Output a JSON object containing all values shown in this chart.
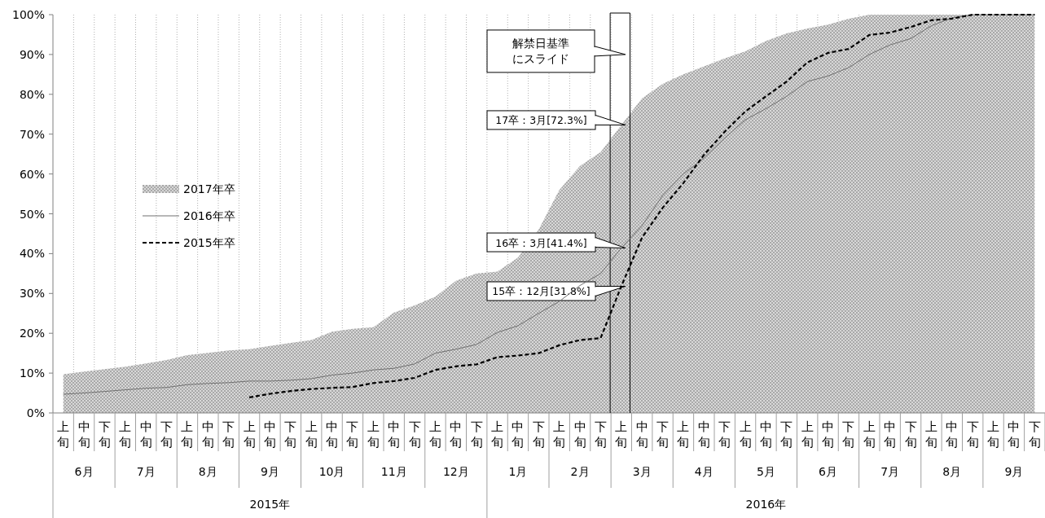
{
  "chart_data": {
    "type": "area",
    "categories": [
      "上旬",
      "中旬",
      "下旬",
      "上旬",
      "中旬",
      "下旬",
      "上旬",
      "中旬",
      "下旬",
      "上旬",
      "中旬",
      "下旬",
      "上旬",
      "中旬",
      "下旬",
      "上旬",
      "中旬",
      "下旬",
      "上旬",
      "中旬",
      "下旬",
      "上旬",
      "中旬",
      "下旬",
      "上旬",
      "中旬",
      "下旬",
      "上旬",
      "中旬",
      "下旬",
      "上旬",
      "中旬",
      "下旬",
      "上旬",
      "中旬",
      "下旬",
      "上旬",
      "中旬",
      "下旬",
      "上旬",
      "中旬",
      "下旬",
      "上旬",
      "中旬",
      "下旬",
      "上旬",
      "中旬",
      "下旬"
    ],
    "series": [
      {
        "name": "2017年卒",
        "type": "area",
        "color": "#a8a8a8",
        "values": [
          9.7,
          10.4,
          11.0,
          11.6,
          12.4,
          13.3,
          14.5,
          15.1,
          15.7,
          16.0,
          16.8,
          17.6,
          18.3,
          20.4,
          21.1,
          21.5,
          25.2,
          27.0,
          29.2,
          33.2,
          35.0,
          35.5,
          39,
          46,
          56,
          62,
          65.5,
          72.3,
          79,
          82.6,
          85,
          87,
          89,
          90.8,
          93.4,
          95.3,
          96.5,
          97.5,
          99,
          100,
          100,
          100,
          100,
          100,
          100,
          100,
          100,
          100
        ]
      },
      {
        "name": "2016年卒",
        "type": "line",
        "color": "#707070",
        "line_style": "solid",
        "values": [
          4.7,
          5.0,
          5.4,
          5.8,
          6.2,
          6.4,
          7.1,
          7.4,
          7.6,
          8.0,
          8.0,
          8.2,
          8.6,
          9.5,
          10,
          10.8,
          11.2,
          12.3,
          15,
          16,
          17.2,
          20.2,
          21.9,
          25,
          28,
          32,
          35,
          41.4,
          47,
          54.6,
          60,
          64,
          69,
          73.6,
          76.4,
          79.5,
          83.2,
          84.6,
          86.7,
          90,
          92.4,
          94,
          97.2,
          99.2,
          100,
          100,
          100,
          100
        ]
      },
      {
        "name": "2015年卒",
        "type": "line",
        "color": "#000000",
        "line_style": "dashed",
        "values": [
          null,
          null,
          null,
          null,
          null,
          null,
          null,
          null,
          null,
          3.9,
          4.8,
          5.5,
          6.0,
          6.3,
          6.5,
          7.5,
          8.0,
          8.8,
          10.8,
          11.7,
          12.2,
          14.0,
          14.4,
          15.0,
          17.0,
          18.3,
          18.8,
          31.8,
          44,
          51.5,
          57.7,
          64.8,
          70.6,
          75.7,
          79.5,
          83.2,
          88,
          90.4,
          91.4,
          94.9,
          95.5,
          96.9,
          98.6,
          99,
          100,
          100,
          100,
          100
        ]
      }
    ],
    "ylim": [
      0,
      100
    ],
    "yticks": [
      {
        "value": 0,
        "label": "0%"
      },
      {
        "value": 10,
        "label": "10%"
      },
      {
        "value": 20,
        "label": "20%"
      },
      {
        "value": 30,
        "label": "30%"
      },
      {
        "value": 40,
        "label": "40%"
      },
      {
        "value": 50,
        "label": "50%"
      },
      {
        "value": 60,
        "label": "60%"
      },
      {
        "value": 70,
        "label": "70%"
      },
      {
        "value": 80,
        "label": "80%"
      },
      {
        "value": 90,
        "label": "90%"
      },
      {
        "value": 100,
        "label": "100%"
      }
    ],
    "grid": "x",
    "legend": "left",
    "annotations": [
      "解禁日基準にスライド",
      "17卒：3月[72.3%]",
      "16卒：3月[41.4%]",
      "15卒：12月[31.8%]",
      "6月",
      "7月",
      "8月",
      "9月",
      "10月",
      "11月",
      "12月",
      "1月",
      "2月",
      "3月",
      "4月",
      "5月",
      "6月",
      "7月",
      "8月",
      "9月",
      "2015年",
      "2016年"
    ]
  }
}
